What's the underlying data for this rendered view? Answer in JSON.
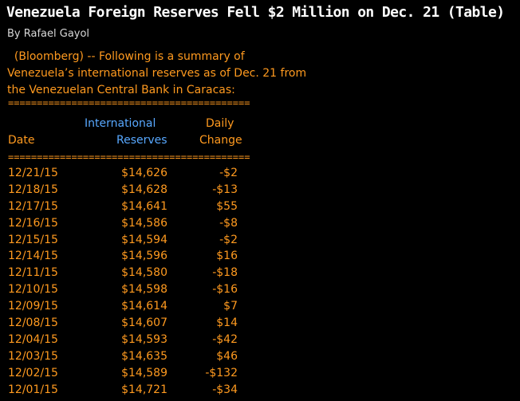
{
  "story": {
    "headline": "Venezuela Foreign Reserves Fell $2 Million on Dec. 21 (Table)",
    "byline": "By Rafael Gayol",
    "intro_lines": [
      "  (Bloomberg) -- Following is a summary of",
      "Venezuela’s international reserves as of Dec. 21 from",
      "the Venezuelan Central Bank in Caracas:"
    ]
  },
  "table": {
    "rule": "==========================================",
    "headers": {
      "reserves_line1": "International",
      "change_line1": "Daily",
      "date_label": "Date",
      "reserves_line2": "Reserves",
      "change_line2": "Change"
    },
    "rows": [
      {
        "date": "12/21/15",
        "reserves": "$14,626",
        "change": "-$2"
      },
      {
        "date": "12/18/15",
        "reserves": "$14,628",
        "change": "-$13"
      },
      {
        "date": "12/17/15",
        "reserves": "$14,641",
        "change": "$55"
      },
      {
        "date": "12/16/15",
        "reserves": "$14,586",
        "change": "-$8"
      },
      {
        "date": "12/15/15",
        "reserves": "$14,594",
        "change": "-$2"
      },
      {
        "date": "12/14/15",
        "reserves": "$14,596",
        "change": "$16"
      },
      {
        "date": "12/11/15",
        "reserves": "$14,580",
        "change": "-$18"
      },
      {
        "date": "12/10/15",
        "reserves": "$14,598",
        "change": "-$16"
      },
      {
        "date": "12/09/15",
        "reserves": "$14,614",
        "change": "$7"
      },
      {
        "date": "12/08/15",
        "reserves": "$14,607",
        "change": "$14"
      },
      {
        "date": "12/04/15",
        "reserves": "$14,593",
        "change": "-$42"
      },
      {
        "date": "12/03/15",
        "reserves": "$14,635",
        "change": "$46"
      },
      {
        "date": "12/02/15",
        "reserves": "$14,589",
        "change": "-$132"
      },
      {
        "date": "12/01/15",
        "reserves": "$14,721",
        "change": "-$34"
      }
    ]
  },
  "colors": {
    "background": "#000000",
    "headline": "#ffffff",
    "byline": "#d8d8d8",
    "body_text": "#ff9a1f",
    "header_highlight": "#58a8ff"
  }
}
